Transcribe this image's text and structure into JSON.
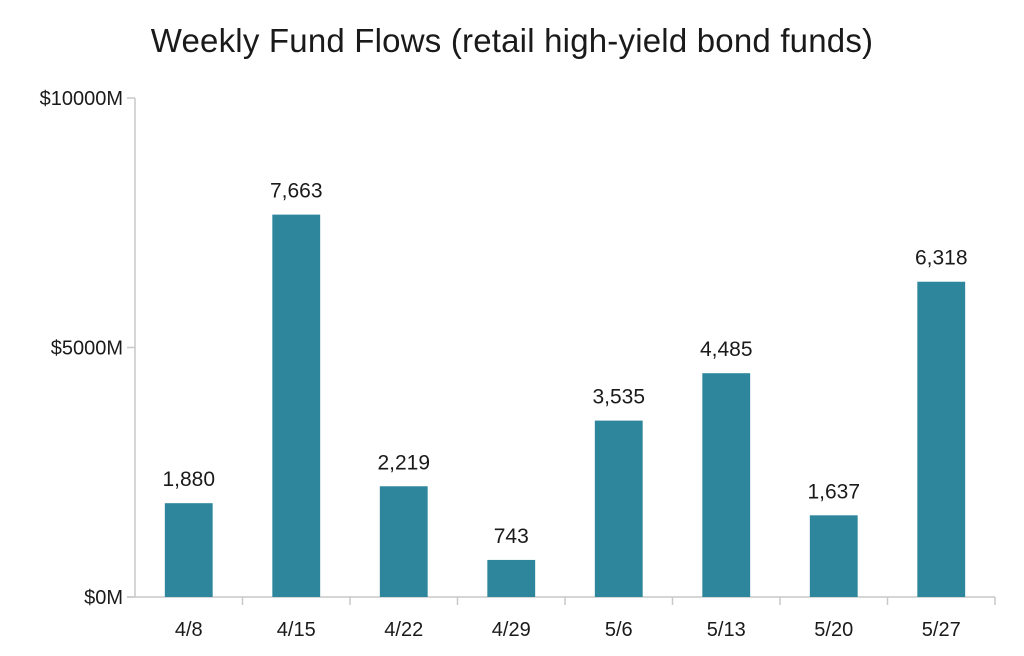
{
  "chart_data": {
    "type": "bar",
    "title": "Weekly Fund Flows (retail high-yield bond funds)",
    "xlabel": "",
    "ylabel": "",
    "categories": [
      "4/8",
      "4/15",
      "4/22",
      "4/29",
      "5/6",
      "5/13",
      "5/20",
      "5/27"
    ],
    "values": [
      1880,
      7663,
      2219,
      743,
      3535,
      4485,
      1637,
      6318
    ],
    "data_labels": [
      "1,880",
      "7,663",
      "2,219",
      "743",
      "3,535",
      "4,485",
      "1,637",
      "6,318"
    ],
    "ylim": [
      0,
      10000
    ],
    "yticks": [
      0,
      5000,
      10000
    ],
    "ytick_labels": [
      "$0M",
      "$5000M",
      "$10000M"
    ],
    "grid": false,
    "legend": "none",
    "bar_color": "#2e869c"
  }
}
